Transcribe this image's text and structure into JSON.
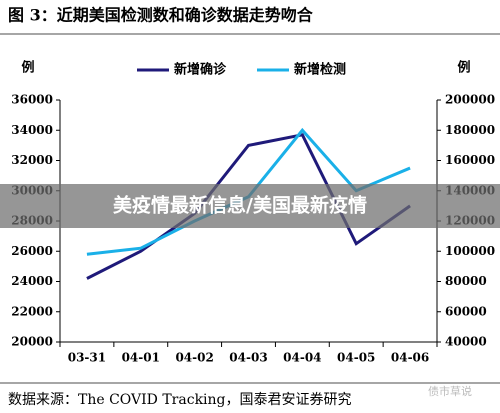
{
  "chart_data": {
    "type": "line",
    "title": "图 3：近期美国检测数和确诊数据走势吻合",
    "y_label": "例",
    "y2_label": "例",
    "categories": [
      "03-31",
      "04-01",
      "04-02",
      "04-03",
      "04-04",
      "04-05",
      "04-06"
    ],
    "series": [
      {
        "name": "新增确诊",
        "color": "#1f1a7a",
        "values": [
          24200,
          26000,
          28500,
          33000,
          33700,
          26500,
          29000
        ]
      },
      {
        "name": "新增检测",
        "color": "#1ab0e8",
        "axis": "y2",
        "values": [
          98000,
          102000,
          120000,
          136000,
          180000,
          140000,
          155000
        ]
      }
    ],
    "ylim": [
      20000,
      36000
    ],
    "yticks": [
      20000,
      22000,
      24000,
      26000,
      28000,
      30000,
      32000,
      34000,
      36000
    ],
    "y2lim": [
      40000,
      200000
    ],
    "y2ticks": [
      40000,
      60000,
      80000,
      100000,
      120000,
      140000,
      160000,
      180000,
      200000
    ],
    "banner": "美疫情最新信息/美国最新疫情",
    "source": "数据来源：The COVID Tracking，国泰君安证券研究",
    "watermark": "债市草说"
  }
}
